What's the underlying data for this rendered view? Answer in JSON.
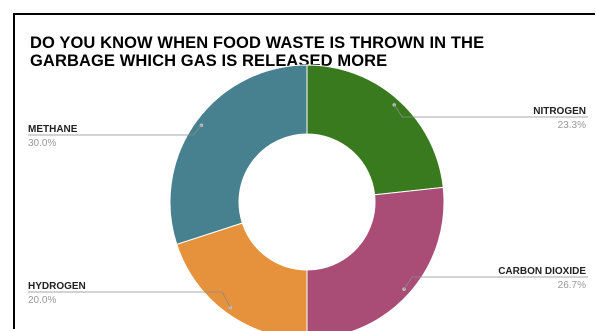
{
  "chart_data": {
    "type": "pie",
    "donut": true,
    "title_line1": "DO YOU KNOW WHEN FOOD WASTE IS THROWN IN THE",
    "title_line2": "GARBAGE WHICH GAS IS RELEASED MORE",
    "slices": [
      {
        "name": "NITROGEN",
        "value": 23.3,
        "label": "23.3%",
        "color": "#3a7a1f"
      },
      {
        "name": "CARBON DIOXIDE",
        "value": 26.7,
        "label": "26.7%",
        "color": "#a94d76"
      },
      {
        "name": "HYDROGEN",
        "value": 20.0,
        "label": "20.0%",
        "color": "#e6923c"
      },
      {
        "name": "METHANE",
        "value": 30.0,
        "label": "30.0%",
        "color": "#47808e"
      }
    ]
  }
}
